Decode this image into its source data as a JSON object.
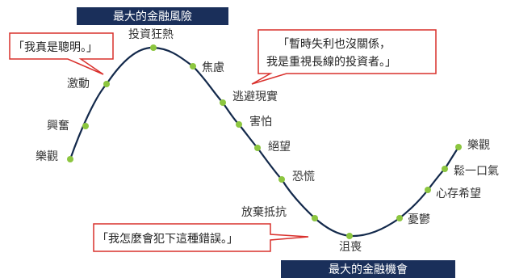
{
  "colors": {
    "curve": "#13294b",
    "dot": "#8cc63f",
    "banner_bg": "#1a2f5a",
    "banner_text": "#ffffff",
    "callout_border": "#d9302c",
    "label": "#333333"
  },
  "banners": {
    "top": "最大的金融風險",
    "bottom": "最大的金融機會"
  },
  "stages": [
    "樂觀",
    "興奮",
    "激動",
    "投資狂熱",
    "焦慮",
    "逃避現實",
    "害怕",
    "絕望",
    "恐慌",
    "放棄抵抗",
    "沮喪",
    "憂鬱",
    "心存希望",
    "鬆一口氣",
    "樂觀"
  ],
  "callouts": {
    "smart": "「我真是聰明。」",
    "long_term_line1": "「暫時失利也沒關係，",
    "long_term_line2": "我是重視長線的投資者。」",
    "mistake": "「我怎麼會犯下這種錯誤。」"
  }
}
